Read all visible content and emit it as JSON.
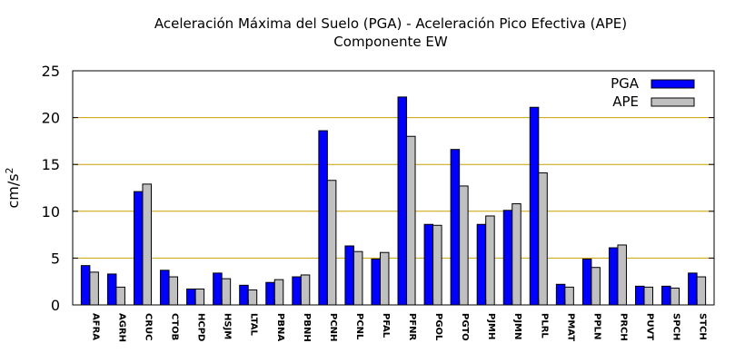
{
  "chart_data": {
    "type": "bar",
    "title": "Aceleración Máxima del Suelo (PGA) -  Aceleración Pico Efectiva (APE)",
    "subtitle": "Componente EW",
    "xlabel": "",
    "ylabel": "cm/s",
    "ylabel_superscript": "2",
    "ylim": [
      0,
      25
    ],
    "yticks": [
      "0",
      "5",
      "10",
      "15",
      "20",
      "25"
    ],
    "grid": true,
    "legend_position": "top-right",
    "categories": [
      "AFRA",
      "AGRH",
      "CRUC",
      "CTOB",
      "HCPD",
      "HSJM",
      "LTAL",
      "PBNA",
      "PBNH",
      "PCNH",
      "PCNL",
      "PFAL",
      "PFNR",
      "PGOL",
      "PGTO",
      "PJMH",
      "PJMN",
      "PLRL",
      "PMAT",
      "PPLN",
      "PRCH",
      "PUVT",
      "SPCH",
      "STCH"
    ],
    "series": [
      {
        "name": "PGA",
        "color": "#0000ff",
        "values": [
          4.2,
          3.3,
          12.1,
          3.7,
          1.7,
          3.4,
          2.1,
          2.4,
          3.0,
          18.6,
          6.3,
          4.9,
          22.2,
          8.6,
          16.6,
          8.6,
          10.1,
          21.1,
          2.2,
          4.9,
          6.1,
          2.0,
          2.0,
          3.4
        ]
      },
      {
        "name": "APE",
        "color": "#c0c0c0",
        "values": [
          3.5,
          1.9,
          12.9,
          3.0,
          1.7,
          2.8,
          1.6,
          2.7,
          3.2,
          13.3,
          5.7,
          5.6,
          18.0,
          8.5,
          12.7,
          9.5,
          10.8,
          14.1,
          1.9,
          4.0,
          6.4,
          1.9,
          1.8,
          3.0
        ]
      }
    ],
    "gridline_color": "#c8a000"
  }
}
